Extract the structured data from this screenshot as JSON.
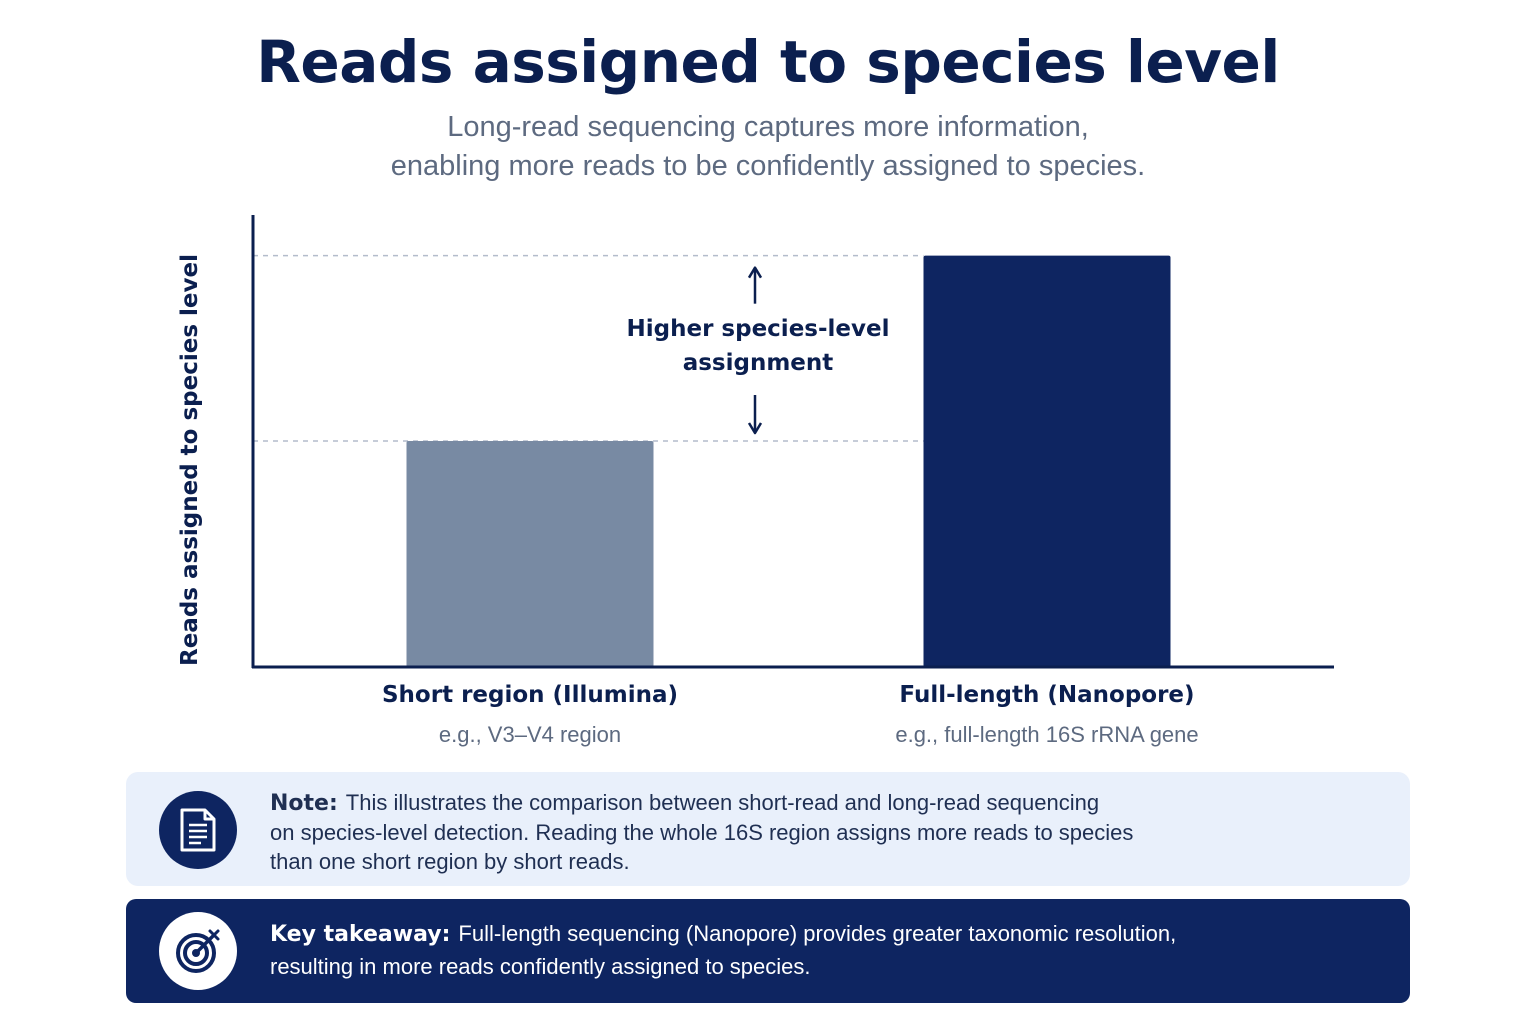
{
  "chart_data": {
    "type": "bar",
    "title": "Reads assigned to species level",
    "subtitle_lines": [
      "Long-read sequencing captures more information,",
      "enabling more reads to be confidently assigned to species."
    ],
    "ylabel": "Reads assigned to species level",
    "categories": [
      "Short region (Illumina)",
      "Full-length (Nanopore)"
    ],
    "category_sublabels": [
      "e.g., V3–V4 region",
      "e.g., full-length 16S rRNA gene"
    ],
    "values": [
      50,
      91
    ],
    "ylim": [
      0,
      100
    ],
    "bar_colors": [
      "#788aa3",
      "#0e2561"
    ],
    "axis_color": "#0b1f4f",
    "grid": false,
    "reference_lines": "dashed lines at each bar top",
    "annotation": {
      "lines": [
        "Higher species-level",
        "assignment"
      ],
      "arrows": "double-headed, between bar tops"
    }
  },
  "note": {
    "lead": "Note:",
    "lines": [
      "This illustrates the comparison between short-read and long-read sequencing",
      "on species-level detection. Reading the whole 16S region assigns more reads to species",
      "than one short region by short reads."
    ],
    "icon": "document-icon",
    "background": "#e9f0fb"
  },
  "takeaway": {
    "lead": "Key takeaway:",
    "lines": [
      "Full-length sequencing (Nanopore) provides greater taxonomic resolution,",
      "resulting in more reads confidently assigned to species."
    ],
    "icon": "target-icon",
    "background": "#0e2561"
  }
}
